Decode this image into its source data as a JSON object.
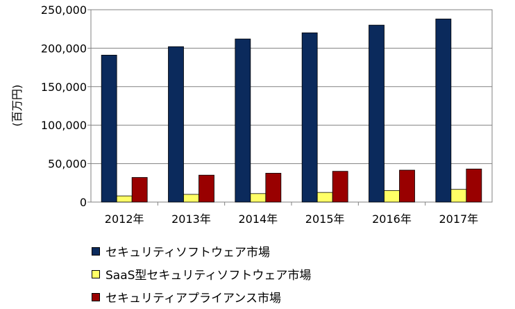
{
  "chart_data": {
    "type": "bar",
    "categories": [
      "2012年",
      "2013年",
      "2014年",
      "2015年",
      "2016年",
      "2017年"
    ],
    "series": [
      {
        "name": "セキュリティソフトウェア市場",
        "color": "#0b2a5c",
        "values": [
          191000,
          202000,
          212000,
          220000,
          230000,
          238000
        ]
      },
      {
        "name": "SaaS型セキュリティソフトウェア市場",
        "color": "#ffff66",
        "values": [
          8000,
          10000,
          11000,
          12500,
          15000,
          16500
        ]
      },
      {
        "name": "セキュリティアプライアンス市場",
        "color": "#990000",
        "values": [
          32000,
          35000,
          37500,
          40000,
          41500,
          43000
        ]
      }
    ],
    "ylabel": "(百万円)",
    "yticks": [
      "0",
      "50,000",
      "100,000",
      "150,000",
      "200,000",
      "250,000"
    ],
    "ylim": [
      0,
      250000
    ],
    "grid": true,
    "legend": "bottom"
  }
}
